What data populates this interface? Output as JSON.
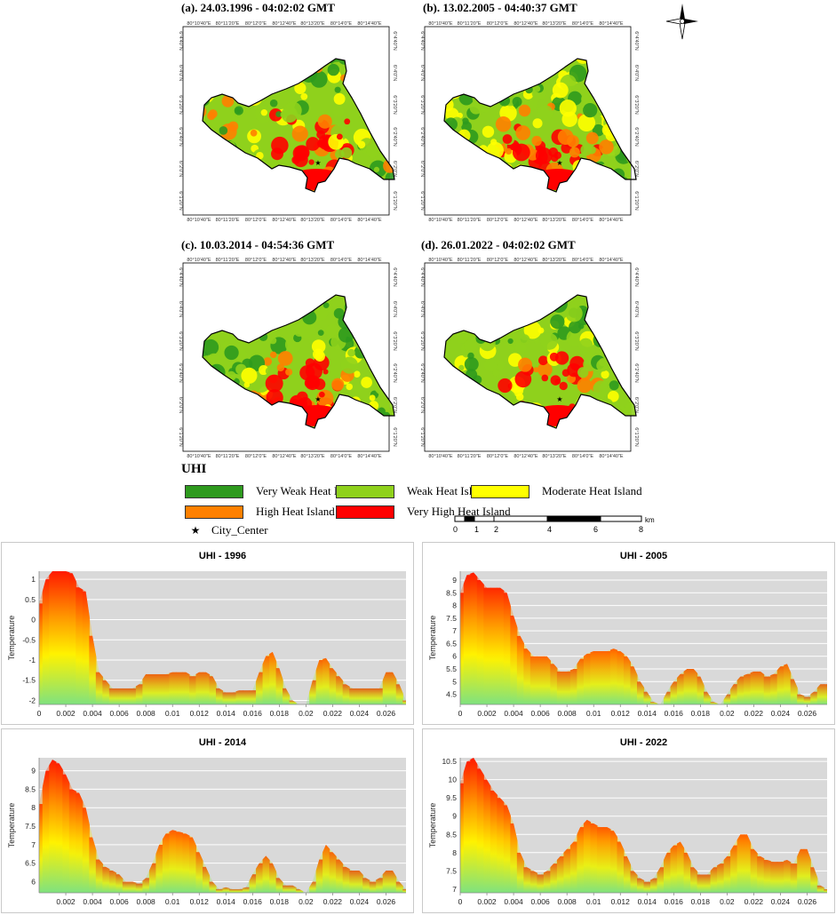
{
  "maps": [
    {
      "label": "(a). 24.03.1996 - 04:02:02 GMT"
    },
    {
      "label": "(b). 13.02.2005 - 04:40:37 GMT"
    },
    {
      "label": "(c). 10.03.2014 - 04:54:36 GMT"
    },
    {
      "label": "(d). 26.01.2022 - 04:02:02 GMT"
    }
  ],
  "map_axis": {
    "top_ticks": [
      "80°10'40\"E",
      "80°11'20\"E",
      "80°12'0\"E",
      "80°12'40\"E",
      "80°13'20\"E",
      "80°14'0\"E",
      "80°14'40\"E"
    ],
    "side_ticks": [
      "6°4'40\"N",
      "6°4'0\"N",
      "6°3'20\"N",
      "6°2'40\"N",
      "6°2'0\"N",
      "6°1'20\"N"
    ]
  },
  "legend": {
    "title": "UHI",
    "items": [
      {
        "label": "Very Weak Heat Island",
        "color": "#2e9a1e"
      },
      {
        "label": "Weak Heat Island",
        "color": "#8fd11c"
      },
      {
        "label": "Moderate Heat Island",
        "color": "#ffff00"
      },
      {
        "label": "High Heat Island",
        "color": "#ff8000"
      },
      {
        "label": "Very High Heat Island",
        "color": "#ff0000"
      }
    ],
    "city_center": "City_Center"
  },
  "scalebar": {
    "ticks": [
      "0",
      "1",
      "2",
      "4",
      "6",
      "8"
    ],
    "unit": "km"
  },
  "chart_data": [
    {
      "type": "area",
      "title": "UHI - 1996",
      "ylabel": "Temperature",
      "xlabel": "",
      "xlim": [
        0,
        0.0275
      ],
      "ylim": [
        -2.1,
        1.2
      ],
      "yticks": [
        -2,
        -1.5,
        -1,
        -0.5,
        0,
        0.5,
        1
      ],
      "xticks": [
        0,
        0.002,
        0.004,
        0.006,
        0.008,
        0.01,
        0.012,
        0.014,
        0.016,
        0.018,
        0.02,
        0.022,
        0.024,
        0.026
      ],
      "x": [
        0,
        0.0005,
        0.001,
        0.0015,
        0.002,
        0.0025,
        0.003,
        0.0035,
        0.004,
        0.0045,
        0.005,
        0.0055,
        0.006,
        0.0065,
        0.007,
        0.0075,
        0.008,
        0.0085,
        0.009,
        0.0095,
        0.01,
        0.0105,
        0.011,
        0.0115,
        0.012,
        0.0125,
        0.013,
        0.0135,
        0.014,
        0.0145,
        0.015,
        0.0155,
        0.016,
        0.0165,
        0.017,
        0.0175,
        0.018,
        0.0185,
        0.019,
        0.0195,
        0.02,
        0.0205,
        0.021,
        0.0215,
        0.022,
        0.0225,
        0.023,
        0.0235,
        0.024,
        0.0245,
        0.025,
        0.0255,
        0.026,
        0.0265,
        0.027,
        0.0275
      ],
      "values": [
        0.4,
        1.0,
        1.2,
        1.2,
        1.2,
        1.15,
        0.8,
        0.7,
        -0.4,
        -1.3,
        -1.5,
        -1.7,
        -1.7,
        -1.7,
        -1.7,
        -1.6,
        -1.35,
        -1.35,
        -1.35,
        -1.35,
        -1.3,
        -1.3,
        -1.3,
        -1.4,
        -1.3,
        -1.3,
        -1.4,
        -1.7,
        -1.8,
        -1.8,
        -1.75,
        -1.75,
        -1.75,
        -1.3,
        -0.9,
        -0.8,
        -1.2,
        -1.7,
        -2.0,
        -2.1,
        -2.1,
        -1.5,
        -1.0,
        -0.95,
        -1.2,
        -1.4,
        -1.6,
        -1.7,
        -1.7,
        -1.7,
        -1.7,
        -1.7,
        -1.3,
        -1.3,
        -1.6,
        -2.0
      ]
    },
    {
      "type": "area",
      "title": "UHI - 2005",
      "ylabel": "Temperature",
      "xlabel": "",
      "xlim": [
        0,
        0.0275
      ],
      "ylim": [
        4.1,
        9.35
      ],
      "yticks": [
        4.5,
        5,
        5.5,
        6,
        6.5,
        7,
        7.5,
        8,
        8.5,
        9
      ],
      "xticks": [
        0,
        0.002,
        0.004,
        0.006,
        0.008,
        0.01,
        0.012,
        0.014,
        0.016,
        0.018,
        0.02,
        0.022,
        0.024,
        0.026
      ],
      "x": [
        0,
        0.0005,
        0.001,
        0.0015,
        0.002,
        0.0025,
        0.003,
        0.0035,
        0.004,
        0.0045,
        0.005,
        0.0055,
        0.006,
        0.0065,
        0.007,
        0.0075,
        0.008,
        0.0085,
        0.009,
        0.0095,
        0.01,
        0.0105,
        0.011,
        0.0115,
        0.012,
        0.0125,
        0.013,
        0.0135,
        0.014,
        0.0145,
        0.015,
        0.0155,
        0.016,
        0.0165,
        0.017,
        0.0175,
        0.018,
        0.0185,
        0.019,
        0.0195,
        0.02,
        0.0205,
        0.021,
        0.0215,
        0.022,
        0.0225,
        0.023,
        0.0235,
        0.024,
        0.0245,
        0.025,
        0.0255,
        0.026,
        0.0265,
        0.027,
        0.0275
      ],
      "values": [
        8.5,
        9.2,
        9.3,
        9.0,
        8.7,
        8.7,
        8.7,
        8.5,
        7.6,
        6.8,
        6.3,
        6.0,
        6.0,
        6.0,
        5.7,
        5.4,
        5.4,
        5.5,
        5.9,
        6.1,
        6.2,
        6.2,
        6.2,
        6.3,
        6.2,
        6.0,
        5.6,
        5.0,
        4.6,
        4.2,
        4.1,
        4.6,
        5.0,
        5.3,
        5.5,
        5.5,
        5.2,
        4.6,
        4.2,
        4.1,
        4.5,
        4.9,
        5.2,
        5.3,
        5.4,
        5.4,
        5.2,
        5.3,
        5.6,
        5.7,
        5.1,
        4.5,
        4.4,
        4.6,
        4.9,
        4.9
      ]
    },
    {
      "type": "area",
      "title": "UHI - 2014",
      "ylabel": "Temperature",
      "xlabel": "",
      "xlim": [
        0,
        0.0275
      ],
      "ylim": [
        5.7,
        9.35
      ],
      "yticks": [
        6,
        6.5,
        7,
        7.5,
        8,
        8.5,
        9
      ],
      "xticks": [
        0.002,
        0.004,
        0.006,
        0.008,
        0.01,
        0.012,
        0.014,
        0.016,
        0.018,
        0.02,
        0.022,
        0.024,
        0.026
      ],
      "x": [
        0,
        0.0005,
        0.001,
        0.0015,
        0.002,
        0.0025,
        0.003,
        0.0035,
        0.004,
        0.0045,
        0.005,
        0.0055,
        0.006,
        0.0065,
        0.007,
        0.0075,
        0.008,
        0.0085,
        0.009,
        0.0095,
        0.01,
        0.0105,
        0.011,
        0.0115,
        0.012,
        0.0125,
        0.013,
        0.0135,
        0.014,
        0.0145,
        0.015,
        0.0155,
        0.016,
        0.0165,
        0.017,
        0.0175,
        0.018,
        0.0185,
        0.019,
        0.0195,
        0.02,
        0.0205,
        0.021,
        0.0215,
        0.022,
        0.0225,
        0.023,
        0.0235,
        0.024,
        0.0245,
        0.025,
        0.0255,
        0.026,
        0.0265,
        0.027,
        0.0275
      ],
      "values": [
        8.1,
        9.0,
        9.3,
        9.2,
        8.9,
        8.5,
        8.4,
        8.0,
        7.2,
        6.6,
        6.4,
        6.3,
        6.2,
        6.0,
        6.0,
        5.95,
        6.1,
        6.5,
        7.0,
        7.3,
        7.4,
        7.35,
        7.3,
        7.2,
        6.8,
        6.4,
        6.0,
        5.8,
        5.85,
        5.8,
        5.8,
        5.85,
        6.2,
        6.5,
        6.7,
        6.5,
        6.1,
        5.9,
        5.9,
        5.8,
        5.7,
        6.0,
        6.6,
        7.0,
        6.8,
        6.6,
        6.4,
        6.3,
        6.3,
        6.1,
        6.0,
        6.1,
        6.3,
        6.3,
        6.0,
        5.8
      ]
    },
    {
      "type": "area",
      "title": "UHI - 2022",
      "ylabel": "Temperature",
      "xlabel": "",
      "xlim": [
        0,
        0.0275
      ],
      "ylim": [
        6.9,
        10.6
      ],
      "yticks": [
        7,
        7.5,
        8,
        8.5,
        9,
        9.5,
        10,
        10.5
      ],
      "xticks": [
        0,
        0.002,
        0.004,
        0.006,
        0.008,
        0.01,
        0.012,
        0.014,
        0.016,
        0.018,
        0.02,
        0.022,
        0.024,
        0.026
      ],
      "x": [
        0,
        0.0005,
        0.001,
        0.0015,
        0.002,
        0.0025,
        0.003,
        0.0035,
        0.004,
        0.0045,
        0.005,
        0.0055,
        0.006,
        0.0065,
        0.007,
        0.0075,
        0.008,
        0.0085,
        0.009,
        0.0095,
        0.01,
        0.0105,
        0.011,
        0.0115,
        0.012,
        0.0125,
        0.013,
        0.0135,
        0.014,
        0.0145,
        0.015,
        0.0155,
        0.016,
        0.0165,
        0.017,
        0.0175,
        0.018,
        0.0185,
        0.019,
        0.0195,
        0.02,
        0.0205,
        0.021,
        0.0215,
        0.022,
        0.0225,
        0.023,
        0.0235,
        0.024,
        0.0245,
        0.025,
        0.0255,
        0.026,
        0.0265,
        0.027,
        0.0275
      ],
      "values": [
        9.9,
        10.5,
        10.6,
        10.3,
        10.0,
        9.7,
        9.5,
        9.3,
        8.8,
        8.0,
        7.6,
        7.5,
        7.4,
        7.5,
        7.7,
        7.9,
        8.1,
        8.3,
        8.7,
        8.9,
        8.8,
        8.7,
        8.7,
        8.6,
        8.3,
        7.9,
        7.5,
        7.3,
        7.2,
        7.3,
        7.6,
        8.0,
        8.2,
        8.3,
        8.0,
        7.6,
        7.4,
        7.4,
        7.6,
        7.7,
        7.9,
        8.2,
        8.5,
        8.5,
        8.1,
        7.9,
        7.8,
        7.75,
        7.75,
        7.8,
        7.7,
        8.1,
        8.1,
        7.6,
        7.1,
        7.0
      ]
    }
  ]
}
